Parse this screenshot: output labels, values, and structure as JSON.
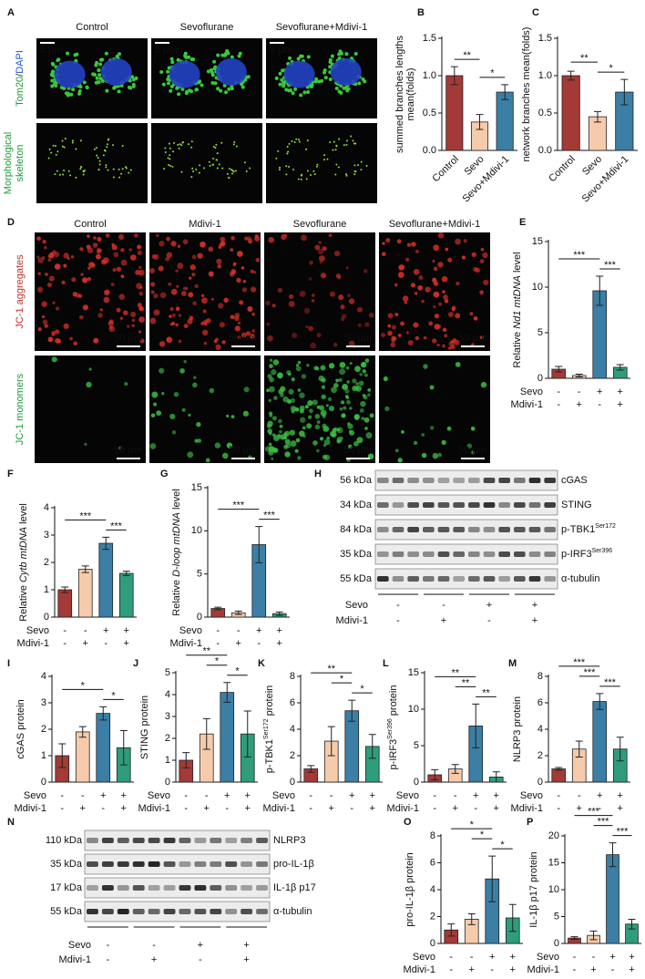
{
  "chart_data": [
    {
      "type": "bar",
      "panel": "B",
      "y_label": [
        [
          {
            "text": "summed branches lengths"
          }
        ],
        [
          {
            "text": "mean(folds)"
          }
        ]
      ],
      "categories": [
        "Control",
        "Sevo",
        "Sevo+Mdivi-1"
      ],
      "values": [
        1,
        0.38,
        0.78
      ],
      "errors": [
        0.12,
        0.1,
        0.1
      ],
      "colors": [
        "#a33a36",
        "#f6cbab",
        "#3b7ea6"
      ],
      "ylim": [
        0,
        1.5
      ],
      "yticks": [
        {
          "value": 0,
          "label": "0.0"
        },
        {
          "value": 0.5,
          "label": "0.5"
        },
        {
          "value": 1,
          "label": "1.0"
        },
        {
          "value": 1.5,
          "label": "1.5"
        }
      ],
      "significance": [
        {
          "from": 0,
          "to": 1,
          "text": "**"
        },
        {
          "from": 1,
          "to": 2,
          "text": "*"
        }
      ]
    },
    {
      "type": "bar",
      "panel": "C",
      "y_label": [
        [
          {
            "text": "network branches mean(folds)"
          }
        ]
      ],
      "categories": [
        "Control",
        "Sevo",
        "Sevo+Mdivi-1"
      ],
      "values": [
        1,
        0.45,
        0.78
      ],
      "errors": [
        0.06,
        0.07,
        0.17
      ],
      "colors": [
        "#a33a36",
        "#f6cbab",
        "#3b7ea6"
      ],
      "ylim": [
        0,
        1.5
      ],
      "yticks": [
        {
          "value": 0,
          "label": "0.0"
        },
        {
          "value": 0.5,
          "label": "0.5"
        },
        {
          "value": 1,
          "label": "1.0"
        },
        {
          "value": 1.5,
          "label": "1.5"
        }
      ],
      "significance": [
        {
          "from": 0,
          "to": 1,
          "text": "**"
        },
        {
          "from": 1,
          "to": 2,
          "text": "*"
        }
      ]
    },
    {
      "type": "bar",
      "panel": "E",
      "y_label": [
        [
          {
            "text": "Relative "
          },
          {
            "text": "Nd1 mtDNA",
            "style": "italic"
          },
          {
            "text": " level"
          }
        ]
      ],
      "treatments": [
        {
          "name": "Sevo",
          "signs": [
            "-",
            "-",
            "+",
            "+"
          ]
        },
        {
          "name": "Mdivi-1",
          "signs": [
            "-",
            "+",
            "-",
            "+"
          ]
        }
      ],
      "values": [
        1,
        0.3,
        9.6,
        1.2
      ],
      "errors": [
        0.3,
        0.15,
        1.6,
        0.3
      ],
      "colors": [
        "#a33a36",
        "#f6cbab",
        "#3b7ea6",
        "#2f9c7c"
      ],
      "ylim": [
        0,
        15
      ],
      "yticks": [
        0,
        5,
        10,
        15
      ],
      "significance": [
        {
          "from": 0,
          "to": 2,
          "text": "***"
        },
        {
          "from": 2,
          "to": 3,
          "text": "***"
        }
      ]
    },
    {
      "type": "bar",
      "panel": "F",
      "y_label": [
        [
          {
            "text": "Relative "
          },
          {
            "text": "Cytb mtDNA",
            "style": "italic"
          },
          {
            "text": " level"
          }
        ]
      ],
      "treatments": [
        {
          "name": "Sevo",
          "signs": [
            "-",
            "-",
            "+",
            "+"
          ]
        },
        {
          "name": "Mdivi-1",
          "signs": [
            "-",
            "+",
            "-",
            "+"
          ]
        }
      ],
      "values": [
        1,
        1.75,
        2.7,
        1.6
      ],
      "errors": [
        0.1,
        0.12,
        0.22,
        0.08
      ],
      "colors": [
        "#a33a36",
        "#f6cbab",
        "#3b7ea6",
        "#2f9c7c"
      ],
      "ylim": [
        0,
        4
      ],
      "yticks": [
        0,
        1,
        2,
        3,
        4
      ],
      "significance": [
        {
          "from": 0,
          "to": 2,
          "text": "***"
        },
        {
          "from": 2,
          "to": 3,
          "text": "***"
        }
      ]
    },
    {
      "type": "bar",
      "panel": "G",
      "y_label": [
        [
          {
            "text": "Relative "
          },
          {
            "text": "D-loop mtDNA",
            "style": "italic"
          },
          {
            "text": " level"
          }
        ]
      ],
      "treatments": [
        {
          "name": "Sevo",
          "signs": [
            "-",
            "-",
            "+",
            "+"
          ]
        },
        {
          "name": "Mdivi-1",
          "signs": [
            "-",
            "+",
            "-",
            "+"
          ]
        }
      ],
      "values": [
        1,
        0.5,
        8.4,
        0.4
      ],
      "errors": [
        0.15,
        0.2,
        2.1,
        0.2
      ],
      "colors": [
        "#a33a36",
        "#f6cbab",
        "#3b7ea6",
        "#2f9c7c"
      ],
      "ylim": [
        0,
        15
      ],
      "yticks": [
        0,
        5,
        10,
        15
      ],
      "significance": [
        {
          "from": 0,
          "to": 2,
          "text": "***"
        },
        {
          "from": 2,
          "to": 3,
          "text": "***"
        }
      ]
    },
    {
      "type": "bar",
      "panel": "I",
      "y_label": [
        [
          {
            "text": "cGAS protein"
          }
        ]
      ],
      "treatments": [
        {
          "name": "Sevo",
          "signs": [
            "-",
            "-",
            "+",
            "+"
          ]
        },
        {
          "name": "Mdivi-1",
          "signs": [
            "-",
            "+",
            "-",
            "+"
          ]
        }
      ],
      "values": [
        1,
        1.9,
        2.6,
        1.3
      ],
      "errors": [
        0.45,
        0.2,
        0.25,
        0.65
      ],
      "colors": [
        "#a33a36",
        "#f6cbab",
        "#3b7ea6",
        "#2f9c7c"
      ],
      "ylim": [
        0,
        4
      ],
      "yticks": [
        0,
        1,
        2,
        3,
        4
      ],
      "significance": [
        {
          "from": 0,
          "to": 2,
          "text": "*"
        },
        {
          "from": 2,
          "to": 3,
          "text": "*"
        }
      ]
    },
    {
      "type": "bar",
      "panel": "J",
      "y_label": [
        [
          {
            "text": "STING protein"
          }
        ]
      ],
      "treatments": [
        {
          "name": "Sevo",
          "signs": [
            "-",
            "-",
            "+",
            "+"
          ]
        },
        {
          "name": "Mdivi-1",
          "signs": [
            "-",
            "+",
            "-",
            "+"
          ]
        }
      ],
      "values": [
        1,
        2.2,
        4.1,
        2.2
      ],
      "errors": [
        0.35,
        0.7,
        0.45,
        1.05
      ],
      "colors": [
        "#a33a36",
        "#f6cbab",
        "#3b7ea6",
        "#2f9c7c"
      ],
      "ylim": [
        0,
        5
      ],
      "yticks": [
        0,
        1,
        2,
        3,
        4,
        5
      ],
      "significance": [
        {
          "from": 0,
          "to": 2,
          "text": "**"
        },
        {
          "from": 1,
          "to": 2,
          "text": "*"
        },
        {
          "from": 2,
          "to": 3,
          "text": "*"
        }
      ]
    },
    {
      "type": "bar",
      "panel": "K",
      "y_label": [
        [
          {
            "text": "p-TBK1"
          },
          {
            "text": "Ser172",
            "style": "sup"
          },
          {
            "text": " protein"
          }
        ]
      ],
      "treatments": [
        {
          "name": "Sevo",
          "signs": [
            "-",
            "-",
            "+",
            "+"
          ]
        },
        {
          "name": "Mdivi-1",
          "signs": [
            "-",
            "+",
            "-",
            "+"
          ]
        }
      ],
      "values": [
        1,
        3.1,
        5.4,
        2.7
      ],
      "errors": [
        0.25,
        1.1,
        0.8,
        0.9
      ],
      "colors": [
        "#a33a36",
        "#f6cbab",
        "#3b7ea6",
        "#2f9c7c"
      ],
      "ylim": [
        0,
        8
      ],
      "yticks": [
        0,
        2,
        4,
        6,
        8
      ],
      "significance": [
        {
          "from": 0,
          "to": 2,
          "text": "**"
        },
        {
          "from": 1,
          "to": 2,
          "text": "*"
        },
        {
          "from": 2,
          "to": 3,
          "text": "*"
        }
      ]
    },
    {
      "type": "bar",
      "panel": "L",
      "y_label": [
        [
          {
            "text": "p-IRF3"
          },
          {
            "text": "Ser396",
            "style": "sup"
          },
          {
            "text": " protein"
          }
        ]
      ],
      "treatments": [
        {
          "name": "Sevo",
          "signs": [
            "-",
            "-",
            "+",
            "+"
          ]
        },
        {
          "name": "Mdivi-1",
          "signs": [
            "-",
            "+",
            "-",
            "+"
          ]
        }
      ],
      "values": [
        1,
        1.8,
        7.7,
        0.7
      ],
      "errors": [
        0.7,
        0.6,
        3,
        0.7
      ],
      "colors": [
        "#a33a36",
        "#f6cbab",
        "#3b7ea6",
        "#2f9c7c"
      ],
      "ylim": [
        0,
        15
      ],
      "yticks": [
        0,
        5,
        10,
        15
      ],
      "significance": [
        {
          "from": 0,
          "to": 2,
          "text": "**"
        },
        {
          "from": 1,
          "to": 2,
          "text": "**"
        },
        {
          "from": 2,
          "to": 3,
          "text": "**"
        }
      ]
    },
    {
      "type": "bar",
      "panel": "M",
      "y_label": [
        [
          {
            "text": "NLRP3 protein"
          }
        ]
      ],
      "treatments": [
        {
          "name": "Sevo",
          "signs": [
            "-",
            "-",
            "+",
            "+"
          ]
        },
        {
          "name": "Mdivi-1",
          "signs": [
            "-",
            "+",
            "-",
            "+"
          ]
        }
      ],
      "values": [
        1,
        2.5,
        6.1,
        2.5
      ],
      "errors": [
        0.1,
        0.6,
        0.6,
        0.9
      ],
      "colors": [
        "#a33a36",
        "#f6cbab",
        "#3b7ea6",
        "#2f9c7c"
      ],
      "ylim": [
        0,
        8
      ],
      "yticks": [
        0,
        2,
        4,
        6,
        8
      ],
      "significance": [
        {
          "from": 0,
          "to": 2,
          "text": "***"
        },
        {
          "from": 1,
          "to": 2,
          "text": "***"
        },
        {
          "from": 2,
          "to": 3,
          "text": "***"
        }
      ]
    },
    {
      "type": "bar",
      "panel": "O",
      "y_label": [
        [
          {
            "text": "pro-IL-1β protein"
          }
        ]
      ],
      "treatments": [
        {
          "name": "Sevo",
          "signs": [
            "-",
            "-",
            "+",
            "+"
          ]
        },
        {
          "name": "Mdivi-1",
          "signs": [
            "-",
            "+",
            "-",
            "+"
          ]
        }
      ],
      "values": [
        1,
        1.8,
        4.8,
        1.9
      ],
      "errors": [
        0.45,
        0.4,
        1.7,
        1
      ],
      "colors": [
        "#a33a36",
        "#f6cbab",
        "#3b7ea6",
        "#2f9c7c"
      ],
      "ylim": [
        0,
        8
      ],
      "yticks": [
        0,
        2,
        4,
        6,
        8
      ],
      "significance": [
        {
          "from": 0,
          "to": 2,
          "text": "*"
        },
        {
          "from": 1,
          "to": 2,
          "text": "*"
        },
        {
          "from": 2,
          "to": 3,
          "text": "*"
        }
      ]
    },
    {
      "type": "bar",
      "panel": "P",
      "y_label": [
        [
          {
            "text": "IL-1β p17 protein"
          }
        ]
      ],
      "treatments": [
        {
          "name": "Sevo",
          "signs": [
            "-",
            "-",
            "+",
            "+"
          ]
        },
        {
          "name": "Mdivi-1",
          "signs": [
            "-",
            "+",
            "-",
            "+"
          ]
        }
      ],
      "values": [
        1,
        1.5,
        16.5,
        3.6
      ],
      "errors": [
        0.25,
        0.8,
        2.2,
        0.9
      ],
      "colors": [
        "#a33a36",
        "#f6cbab",
        "#3b7ea6",
        "#2f9c7c"
      ],
      "ylim": [
        0,
        20
      ],
      "yticks": [
        0,
        5,
        10,
        15,
        20
      ],
      "significance": [
        {
          "from": 0,
          "to": 2,
          "text": "***"
        },
        {
          "from": 1,
          "to": 2,
          "text": "***"
        },
        {
          "from": 2,
          "to": 3,
          "text": "***"
        }
      ]
    }
  ],
  "image_panels": [
    {
      "panel": "A",
      "columns": [
        "Control",
        "Sevoflurane",
        "Sevoflurane+Mdivi-1"
      ],
      "rows": [
        [
          [
            {
              "text": "Tom20",
              "color": "#1e9b3a"
            },
            {
              "text": "/",
              "color": "#222222"
            },
            {
              "text": "DAPI",
              "color": "#2255cc"
            }
          ]
        ],
        [
          [
            {
              "text": "Morphological",
              "color": "#1e9b3a"
            }
          ],
          [
            {
              "text": "skeleton",
              "color": "#1e9b3a"
            }
          ]
        ]
      ],
      "scale_bar": "5 μm"
    },
    {
      "panel": "D",
      "columns": [
        "Control",
        "Mdivi-1",
        "Sevoflurane",
        "Sevoflurane+Mdivi-1"
      ],
      "rows": [
        [
          [
            {
              "text": "JC-1 aggregates",
              "color": "#c0312b"
            }
          ]
        ],
        [
          [
            {
              "text": "JC-1 monomers",
              "color": "#1e9b3a"
            }
          ]
        ]
      ],
      "scale_bar": "50 μm"
    }
  ],
  "blots": [
    {
      "panel": "H",
      "kda": [
        "56 kDa",
        "34 kDa",
        "84 kDa",
        "35 kDa",
        "55 kDa"
      ],
      "proteins": [
        [
          {
            "text": "cGAS"
          }
        ],
        [
          {
            "text": "STING"
          }
        ],
        [
          {
            "text": "p-TBK1"
          },
          {
            "text": "Ser172",
            "style": "sup"
          }
        ],
        [
          {
            "text": "p-IRF3"
          },
          {
            "text": "Ser396",
            "style": "sup"
          }
        ],
        [
          {
            "text": "α-tubulin"
          }
        ]
      ],
      "treatments": [
        {
          "name": "Sevo",
          "signs": [
            "-",
            "-",
            "+",
            "+"
          ]
        },
        {
          "name": "Mdivi-1",
          "signs": [
            "-",
            "+",
            "-",
            "+"
          ]
        }
      ]
    },
    {
      "panel": "N",
      "kda": [
        "110 kDa",
        "35 kDa",
        "17 kDa",
        "55 kDa"
      ],
      "proteins": [
        [
          {
            "text": "NLRP3"
          }
        ],
        [
          {
            "text": "pro-IL-1β"
          }
        ],
        [
          {
            "text": "IL-1β p17"
          }
        ],
        [
          {
            "text": "α-tubulin"
          }
        ]
      ],
      "treatments": [
        {
          "name": "Sevo",
          "signs": [
            "-",
            "-",
            "+",
            "+"
          ]
        },
        {
          "name": "Mdivi-1",
          "signs": [
            "-",
            "+",
            "-",
            "+"
          ]
        }
      ]
    }
  ]
}
